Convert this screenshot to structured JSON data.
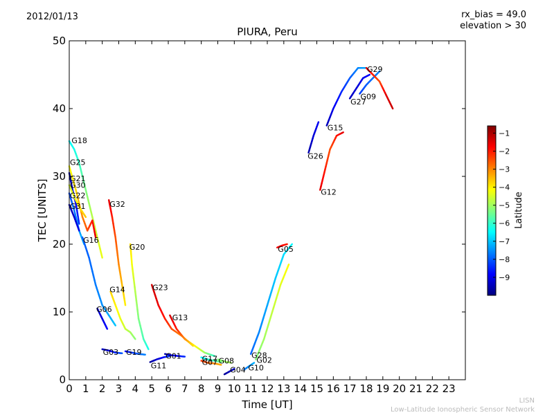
{
  "header": {
    "date": "2012/01/13",
    "rx_bias": "rx_bias = 49.0",
    "elevation": "elevation > 30"
  },
  "footer": {
    "line1": "LISN",
    "line2": "Low-Latitude Ionospheric Sensor Network"
  },
  "chart_data": {
    "type": "scatter",
    "title": "PIURA, Peru",
    "xlabel": "Time [UT]",
    "ylabel": "TEC [UNITS]",
    "xlim": [
      0,
      24
    ],
    "ylim": [
      0,
      50
    ],
    "xticks": [
      0,
      1,
      2,
      3,
      4,
      5,
      6,
      7,
      8,
      9,
      10,
      11,
      12,
      13,
      14,
      15,
      16,
      17,
      18,
      19,
      20,
      21,
      22,
      23
    ],
    "yticks": [
      0,
      10,
      20,
      30,
      40,
      50
    ],
    "grid": false,
    "colorbar": {
      "label": "Latitude",
      "range": [
        -10,
        -0.6
      ],
      "ticks": [
        -1,
        -2,
        -3,
        -4,
        -5,
        -6,
        -7,
        -8,
        -9
      ],
      "colormap": [
        "#00007f",
        "#0000ff",
        "#0080ff",
        "#00ffff",
        "#80ff80",
        "#ffff00",
        "#ff8000",
        "#ff0000",
        "#7f0000"
      ]
    },
    "series": [
      {
        "name": "G18",
        "label": [
          0.1,
          35.3
        ],
        "points": [
          [
            0.0,
            35.2,
            -6.5
          ],
          [
            0.3,
            34.0,
            -6.3
          ],
          [
            0.6,
            32.0,
            -6.0
          ],
          [
            0.9,
            29.0,
            -5.5
          ],
          [
            1.2,
            26.0,
            -5.0
          ],
          [
            1.6,
            22.0,
            -4.6
          ],
          [
            2.0,
            18.0,
            -4.3
          ]
        ]
      },
      {
        "name": "G25",
        "label": [
          0.0,
          32.1
        ],
        "points": [
          [
            0.0,
            31.5,
            -4.2
          ],
          [
            0.4,
            28.0,
            -3.8
          ],
          [
            0.8,
            24.0,
            -3.0
          ],
          [
            1.1,
            22.0,
            -2.5
          ],
          [
            1.4,
            23.5,
            -2.0
          ],
          [
            1.6,
            21.0,
            -1.5
          ]
        ]
      },
      {
        "name": "G21",
        "label": [
          0.0,
          29.7
        ],
        "points": [
          [
            0.0,
            30.5,
            -9.6
          ],
          [
            0.2,
            28.0,
            -9.3
          ],
          [
            0.4,
            26.0,
            -8.8
          ],
          [
            0.6,
            23.0,
            -8.4
          ]
        ]
      },
      {
        "name": "G30",
        "label": [
          0.0,
          28.7
        ],
        "points": [
          [
            0.0,
            28.7,
            -4.5
          ],
          [
            0.3,
            27.0,
            -4.3
          ],
          [
            0.6,
            25.5,
            -4.0
          ],
          [
            1.0,
            24.0,
            -3.6
          ]
        ]
      },
      {
        "name": "G22",
        "label": [
          0.0,
          27.2
        ],
        "points": [
          [
            0.0,
            27.5,
            -8.2
          ],
          [
            0.3,
            25.0,
            -7.8
          ],
          [
            0.6,
            22.0,
            -7.4
          ],
          [
            0.9,
            20.0,
            -7.1
          ]
        ]
      },
      {
        "name": "G31",
        "label": [
          0.0,
          25.6
        ],
        "points": [
          [
            0.0,
            25.8,
            -9.5
          ],
          [
            0.3,
            24.0,
            -9.3
          ],
          [
            0.6,
            22.0,
            -9.0
          ]
        ]
      },
      {
        "name": "G16",
        "label": [
          0.8,
          20.6
        ],
        "points": [
          [
            0.8,
            21.0,
            -8.0
          ],
          [
            1.2,
            18.0,
            -7.9
          ],
          [
            1.6,
            14.0,
            -7.7
          ],
          [
            2.0,
            11.0,
            -7.5
          ],
          [
            2.4,
            9.5,
            -7.3
          ],
          [
            2.8,
            8.0,
            -7.0
          ]
        ]
      },
      {
        "name": "G32",
        "label": [
          2.4,
          25.9
        ],
        "points": [
          [
            2.4,
            26.5,
            -1.5
          ],
          [
            2.6,
            24.0,
            -2.0
          ],
          [
            2.8,
            21.0,
            -2.5
          ],
          [
            3.0,
            17.0,
            -3.0
          ],
          [
            3.2,
            14.0,
            -3.5
          ],
          [
            3.4,
            11.0,
            -4.0
          ]
        ]
      },
      {
        "name": "G20",
        "label": [
          3.6,
          19.6
        ],
        "points": [
          [
            3.7,
            20.0,
            -3.8
          ],
          [
            3.8,
            17.0,
            -4.2
          ],
          [
            4.0,
            13.0,
            -4.8
          ],
          [
            4.2,
            9.0,
            -5.3
          ],
          [
            4.5,
            6.0,
            -5.8
          ],
          [
            4.8,
            4.5,
            -6.3
          ]
        ]
      },
      {
        "name": "G14",
        "label": [
          2.4,
          13.3
        ],
        "points": [
          [
            2.5,
            13.0,
            -3.7
          ],
          [
            2.8,
            11.0,
            -4.0
          ],
          [
            3.1,
            9.0,
            -4.3
          ],
          [
            3.4,
            7.5,
            -4.6
          ],
          [
            3.7,
            7.0,
            -4.9
          ],
          [
            4.0,
            6.0,
            -5.2
          ]
        ]
      },
      {
        "name": "G06",
        "label": [
          1.6,
          10.4
        ],
        "points": [
          [
            1.7,
            10.5,
            -9.4
          ],
          [
            1.9,
            9.5,
            -9.2
          ],
          [
            2.1,
            8.5,
            -9.0
          ],
          [
            2.3,
            7.5,
            -8.8
          ]
        ]
      },
      {
        "name": "G23",
        "label": [
          5.0,
          13.6
        ],
        "points": [
          [
            5.0,
            14.0,
            -1.3
          ],
          [
            5.4,
            11.0,
            -1.6
          ],
          [
            5.8,
            9.0,
            -2.0
          ],
          [
            6.2,
            7.5,
            -2.4
          ],
          [
            6.8,
            6.5,
            -3.0
          ],
          [
            7.5,
            5.0,
            -3.8
          ]
        ]
      },
      {
        "name": "G13",
        "label": [
          6.2,
          9.2
        ],
        "points": [
          [
            6.1,
            9.5,
            -1.3
          ],
          [
            6.5,
            7.5,
            -2.0
          ],
          [
            7.0,
            6.0,
            -3.0
          ],
          [
            7.6,
            5.0,
            -4.0
          ],
          [
            8.2,
            4.0,
            -5.0
          ],
          [
            8.8,
            3.5,
            -6.0
          ]
        ]
      },
      {
        "name": "G03",
        "label": [
          2.0,
          4.1
        ],
        "points": [
          [
            2.0,
            4.5,
            -9.5
          ],
          [
            2.4,
            4.3,
            -9.0
          ],
          [
            2.8,
            4.0,
            -8.5
          ],
          [
            3.2,
            3.9,
            -8.0
          ]
        ]
      },
      {
        "name": "G19",
        "label": [
          3.4,
          4.1
        ],
        "points": [
          [
            3.4,
            4.2,
            -8.8
          ],
          [
            3.8,
            4.0,
            -8.4
          ],
          [
            4.2,
            3.8,
            -8.0
          ],
          [
            4.6,
            3.7,
            -7.6
          ]
        ]
      },
      {
        "name": "G11",
        "label": [
          4.9,
          2.1
        ],
        "points": [
          [
            4.9,
            2.6,
            -9.8
          ],
          [
            5.3,
            3.0,
            -9.3
          ],
          [
            5.7,
            3.3,
            -8.8
          ],
          [
            6.1,
            3.5,
            -8.3
          ]
        ]
      },
      {
        "name": "G01",
        "label": [
          5.8,
          3.5
        ],
        "points": [
          [
            5.8,
            3.8,
            -9.6
          ],
          [
            6.2,
            3.6,
            -9.2
          ],
          [
            6.6,
            3.5,
            -8.8
          ],
          [
            7.0,
            3.4,
            -8.4
          ]
        ]
      },
      {
        "name": "G17",
        "label": [
          8.0,
          3.1
        ],
        "points": [
          [
            8.0,
            3.3,
            -6.6
          ],
          [
            8.4,
            3.0,
            -6.2
          ],
          [
            8.8,
            2.8,
            -5.8
          ],
          [
            9.2,
            2.6,
            -5.4
          ]
        ]
      },
      {
        "name": "G07",
        "label": [
          8.0,
          2.6
        ],
        "points": [
          [
            8.0,
            2.8,
            -2.2
          ],
          [
            8.4,
            2.5,
            -2.6
          ],
          [
            8.8,
            2.4,
            -3.0
          ],
          [
            9.2,
            2.2,
            -3.4
          ]
        ]
      },
      {
        "name": "G08",
        "label": [
          9.0,
          2.8
        ],
        "points": [
          [
            9.0,
            3.0,
            -5.3
          ],
          [
            9.4,
            2.7,
            -5.1
          ],
          [
            9.8,
            2.5,
            -4.9
          ]
        ]
      },
      {
        "name": "G04",
        "label": [
          9.7,
          1.5
        ],
        "points": [
          [
            9.4,
            0.8,
            -9.8
          ],
          [
            9.7,
            1.2,
            -9.5
          ],
          [
            10.0,
            1.6,
            -9.2
          ]
        ]
      },
      {
        "name": "G10",
        "label": [
          10.8,
          1.8
        ],
        "points": [
          [
            10.6,
            1.5,
            -7.8
          ],
          [
            10.9,
            2.0,
            -7.5
          ],
          [
            11.2,
            2.5,
            -7.2
          ]
        ]
      },
      {
        "name": "G28",
        "label": [
          11.0,
          3.6
        ],
        "points": [
          [
            11.0,
            3.8,
            -7.9
          ],
          [
            11.5,
            7.0,
            -7.6
          ],
          [
            12.0,
            11.0,
            -7.3
          ],
          [
            12.5,
            15.0,
            -7.0
          ],
          [
            13.0,
            18.5,
            -6.8
          ],
          [
            13.5,
            20.0,
            -6.5
          ]
        ]
      },
      {
        "name": "G02",
        "label": [
          11.3,
          2.9
        ],
        "points": [
          [
            11.3,
            3.0,
            -5.3
          ],
          [
            11.8,
            6.0,
            -5.0
          ],
          [
            12.3,
            10.0,
            -4.7
          ],
          [
            12.8,
            14.0,
            -4.4
          ],
          [
            13.3,
            17.0,
            -4.1
          ]
        ]
      },
      {
        "name": "G05",
        "label": [
          12.6,
          19.3
        ],
        "points": [
          [
            12.6,
            19.5,
            -1.6
          ],
          [
            12.9,
            19.8,
            -1.8
          ],
          [
            13.2,
            20.0,
            -2.0
          ]
        ]
      },
      {
        "name": "G26",
        "label": [
          14.4,
          33.0
        ],
        "points": [
          [
            14.5,
            33.5,
            -9.6
          ],
          [
            14.8,
            36.0,
            -9.2
          ],
          [
            15.1,
            38.0,
            -8.9
          ]
        ]
      },
      {
        "name": "G12",
        "label": [
          15.2,
          27.7
        ],
        "points": [
          [
            15.2,
            28.0,
            -1.5
          ],
          [
            15.5,
            31.0,
            -2.0
          ],
          [
            15.8,
            34.0,
            -2.5
          ],
          [
            16.2,
            36.0,
            -2.0
          ],
          [
            16.6,
            36.5,
            -1.5
          ]
        ]
      },
      {
        "name": "G15",
        "label": [
          15.6,
          37.2
        ],
        "points": [
          [
            15.6,
            37.5,
            -9.5
          ],
          [
            16.0,
            40.0,
            -9.0
          ],
          [
            16.5,
            42.5,
            -8.5
          ],
          [
            17.0,
            44.5,
            -8.0
          ],
          [
            17.5,
            46.0,
            -7.6
          ],
          [
            18.0,
            46.0,
            -7.3
          ]
        ]
      },
      {
        "name": "G27",
        "label": [
          17.0,
          41.0
        ],
        "points": [
          [
            17.0,
            41.5,
            -9.4
          ],
          [
            17.4,
            43.0,
            -9.2
          ],
          [
            17.8,
            44.5,
            -9.0
          ],
          [
            18.2,
            45.0,
            -8.8
          ]
        ]
      },
      {
        "name": "G09",
        "label": [
          17.6,
          41.8
        ],
        "points": [
          [
            17.6,
            42.2,
            -8.3
          ],
          [
            18.0,
            43.5,
            -8.0
          ],
          [
            18.4,
            44.5,
            -7.8
          ],
          [
            18.8,
            45.5,
            -7.6
          ]
        ]
      },
      {
        "name": "G29",
        "label": [
          18.0,
          45.8
        ],
        "points": [
          [
            18.0,
            46.0,
            -1.5
          ],
          [
            18.4,
            45.0,
            -2.0
          ],
          [
            18.8,
            44.0,
            -2.5
          ],
          [
            19.2,
            42.0,
            -1.5
          ],
          [
            19.6,
            40.0,
            -1.3
          ]
        ]
      }
    ]
  }
}
